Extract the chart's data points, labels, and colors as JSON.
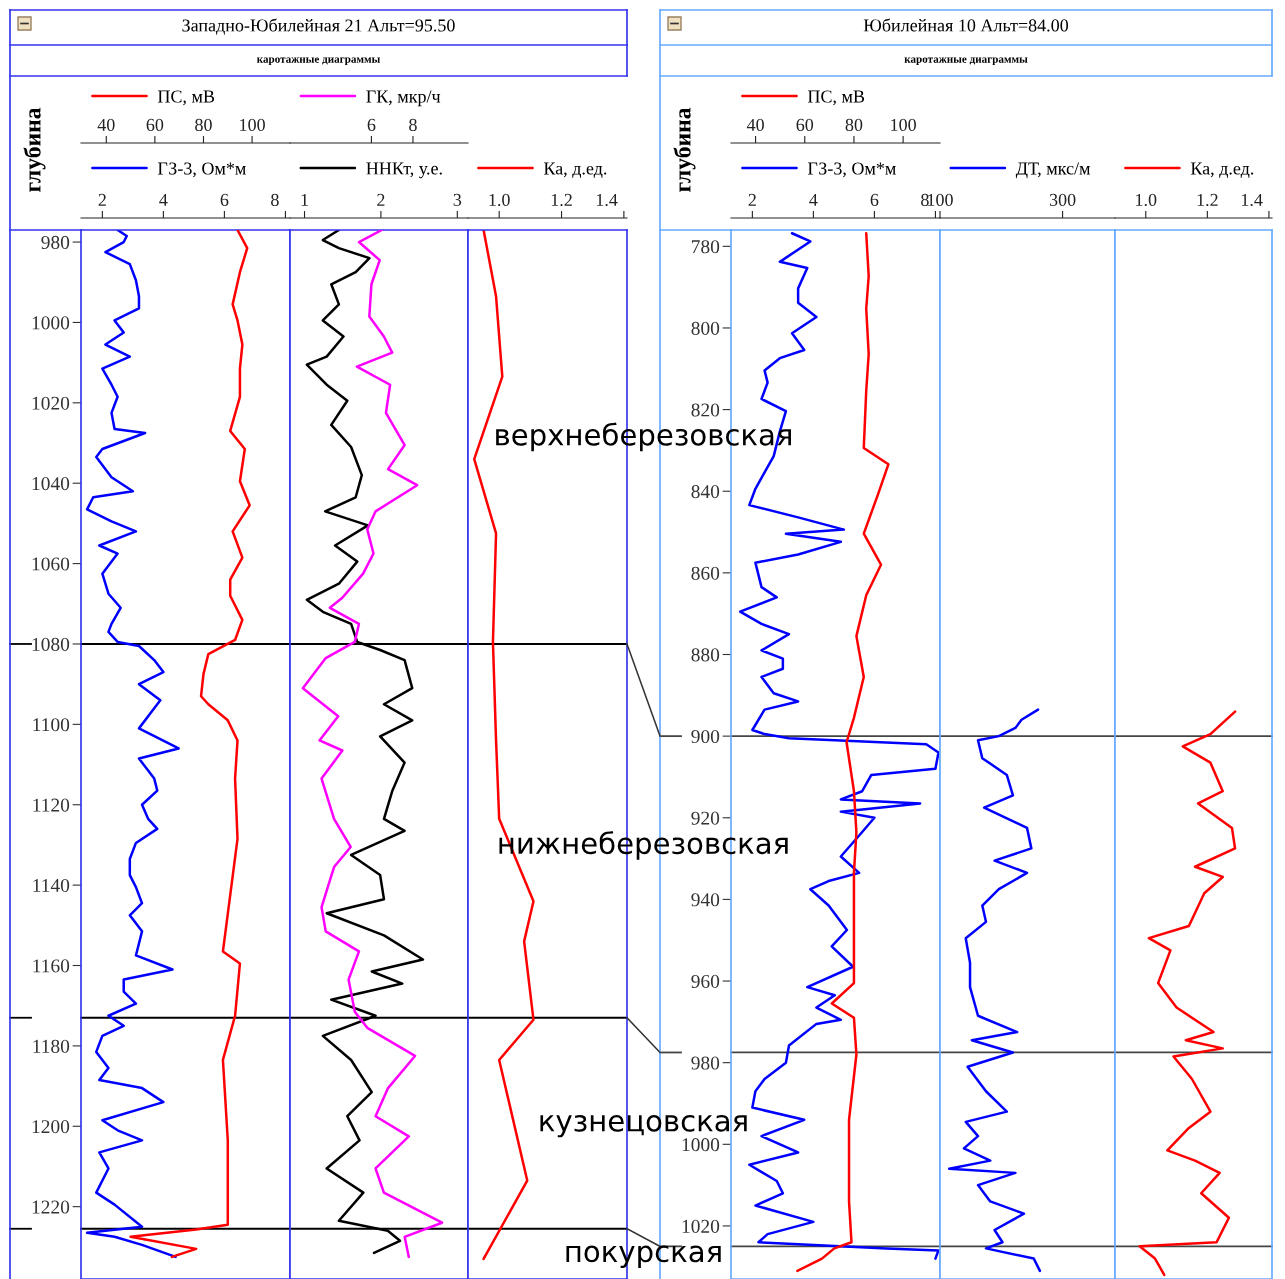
{
  "chart_data": [
    {
      "type": "line",
      "orientation": "horizontal",
      "title": "Западно-Юбилейная 21 Альт=95.50",
      "subtitle": "каротажные диаграммы",
      "ylabel": "глубина",
      "legend": "top",
      "ylim": [
        1238,
        977
      ],
      "yticks": [
        980,
        1000,
        1020,
        1040,
        1060,
        1080,
        1100,
        1120,
        1140,
        1160,
        1180,
        1200,
        1220
      ],
      "xlim": [
        1.3,
        8.15
      ],
      "xticks": [
        2,
        4,
        6,
        8
      ],
      "x2lim": [
        29.6,
        115.6
      ],
      "x2ticks": [
        40,
        60,
        80,
        100
      ],
      "ref_lines": [
        {
          "axis": "y",
          "value": 1080,
          "color": "#000000"
        },
        {
          "axis": "y",
          "value": 1173,
          "color": "#000000"
        },
        {
          "axis": "y",
          "value": 1225.5,
          "color": "#000000"
        }
      ],
      "series": [
        {
          "name": "ГЗ-3, Ом*м",
          "color": "#0000ff",
          "x": [
            977,
            978.5,
            980,
            982.5,
            985.5,
            989.5,
            993.5,
            996.5,
            999.5,
            1002.5,
            1005.5,
            1008.5,
            1011.5,
            1015.5,
            1018.5,
            1022.5,
            1026.5,
            1027.5,
            1031.5,
            1033.5,
            1038.5,
            1042,
            1043.5,
            1046.5,
            1049.5,
            1052,
            1055.5,
            1057.5,
            1062.5,
            1067.5,
            1071,
            1075,
            1077,
            1079.5,
            1080.5,
            1084,
            1087,
            1090,
            1094,
            1097,
            1101,
            1106,
            1108.5,
            1113.5,
            1116.5,
            1120,
            1123.5,
            1126,
            1129.5,
            1133.5,
            1137.5,
            1140.5,
            1144.5,
            1147.5,
            1151.5,
            1157.5,
            1161,
            1163.5,
            1166.5,
            1169.5,
            1172.5,
            1175,
            1177.5,
            1181.5,
            1185.5,
            1188.5,
            1190.5,
            1194,
            1198.5,
            1201,
            1203.5,
            1206.5,
            1210.5,
            1216.5,
            1219.5,
            1225,
            1226.5,
            1227.5,
            1229.5,
            1232.5
          ],
          "values": [
            2.5,
            2.8,
            2.7,
            2.1,
            2.9,
            3.1,
            3.2,
            3.2,
            2.4,
            2.7,
            2.1,
            2.9,
            2.0,
            2.3,
            2.5,
            2.3,
            2.4,
            3.4,
            2.0,
            1.8,
            2.3,
            3.0,
            1.7,
            1.5,
            2.3,
            3.1,
            1.9,
            2.5,
            2.0,
            2.2,
            2.6,
            2.3,
            2.2,
            2.5,
            3.2,
            3.7,
            4.0,
            3.2,
            3.9,
            3.6,
            3.2,
            4.5,
            3.2,
            3.7,
            3.8,
            3.3,
            3.5,
            3.8,
            3.1,
            2.9,
            2.9,
            3.1,
            3.3,
            2.9,
            3.3,
            3.1,
            4.3,
            2.7,
            2.7,
            3.1,
            2.2,
            2.7,
            2.0,
            1.8,
            2.2,
            1.9,
            3.3,
            4.0,
            2.0,
            2.5,
            3.3,
            1.9,
            2.2,
            1.8,
            2.4,
            3.3,
            1.5,
            2.4,
            3.3,
            4.4
          ]
        },
        {
          "name": "ПС, мВ",
          "color": "#ff0000",
          "axis": "x2",
          "x": [
            977,
            981.5,
            987.5,
            995.5,
            999.5,
            1005.5,
            1011.5,
            1018.5,
            1027,
            1031.5,
            1039.5,
            1045.5,
            1052,
            1058.5,
            1064,
            1068,
            1074,
            1079,
            1082.5,
            1087.5,
            1093,
            1095,
            1099,
            1104,
            1113.5,
            1128.5,
            1142.5,
            1156.5,
            1159.5,
            1172.5,
            1183.5,
            1203.5,
            1224.5,
            1225.7,
            1227.5,
            1230.5,
            1232.5
          ],
          "values": [
            94,
            98,
            95,
            92,
            94,
            96,
            95,
            95,
            91,
            97,
            95,
            99,
            92,
            96,
            91,
            91,
            96,
            93,
            82,
            80,
            79,
            82,
            90,
            94,
            93,
            94,
            91,
            88,
            95,
            93,
            88,
            90,
            90,
            77,
            50,
            77,
            67
          ]
        }
      ]
    },
    {
      "type": "line",
      "orientation": "horizontal",
      "legend": "top",
      "tick_labels": "x",
      "ylim": [
        1238,
        977
      ],
      "xlim": [
        0.81,
        3.14
      ],
      "xticks": [
        1,
        2,
        3
      ],
      "x2lim": [
        2.08,
        10.65
      ],
      "x2ticks": [
        6,
        8
      ],
      "ref_lines": [
        {
          "axis": "y",
          "value": 1080,
          "color": "#000000"
        },
        {
          "axis": "y",
          "value": 1173,
          "color": "#000000"
        },
        {
          "axis": "y",
          "value": 1225.5,
          "color": "#000000"
        }
      ],
      "series": [
        {
          "name": "ННКт, у.е.",
          "color": "#000000",
          "x": [
            977,
            979.5,
            981.5,
            984,
            987.5,
            990.5,
            995.5,
            999.5,
            1003.5,
            1008.5,
            1010.5,
            1015.5,
            1019.5,
            1025.5,
            1031,
            1038,
            1043.5,
            1047,
            1050.5,
            1055.5,
            1059.5,
            1065,
            1069,
            1072,
            1075,
            1079.5,
            1081.5,
            1084,
            1091,
            1095,
            1099,
            1103,
            1109.5,
            1116.5,
            1123.5,
            1126.5,
            1132.5,
            1137.5,
            1143.5,
            1147,
            1152.5,
            1158.5,
            1161.5,
            1164.5,
            1168.5,
            1172.5,
            1177.5,
            1183.5,
            1191.5,
            1197.5,
            1203.5,
            1210.5,
            1216.5,
            1223.5,
            1226,
            1228.5,
            1231.5
          ],
          "values": [
            1.45,
            1.24,
            1.45,
            1.85,
            1.67,
            1.35,
            1.45,
            1.24,
            1.51,
            1.29,
            1.03,
            1.29,
            1.56,
            1.35,
            1.61,
            1.75,
            1.67,
            1.27,
            1.83,
            1.4,
            1.69,
            1.45,
            1.03,
            1.24,
            1.61,
            1.69,
            1.99,
            2.31,
            2.41,
            2.04,
            2.41,
            1.99,
            2.31,
            2.15,
            2.04,
            2.31,
            1.61,
            1.99,
            2.04,
            1.29,
            2.04,
            2.55,
            1.88,
            2.28,
            1.35,
            1.93,
            1.24,
            1.61,
            1.88,
            1.56,
            1.72,
            1.29,
            1.77,
            1.45,
            2.09,
            2.25,
            1.91
          ]
        },
        {
          "name": "ГК, мкр/ч",
          "color": "#ff00ff",
          "axis": "x2",
          "x": [
            977,
            980,
            984.5,
            990.5,
            998.5,
            1003.5,
            1007.5,
            1011,
            1015.5,
            1022.5,
            1030.5,
            1036.5,
            1040.5,
            1047,
            1051.5,
            1057.5,
            1062.5,
            1068.5,
            1071,
            1075,
            1079.5,
            1083.5,
            1091,
            1098,
            1104,
            1106.5,
            1113.5,
            1123.5,
            1130.5,
            1135.5,
            1145.5,
            1151.5,
            1156.5,
            1163.5,
            1171.5,
            1175.5,
            1182.5,
            1190.5,
            1197.5,
            1202.5,
            1210.5,
            1216.5,
            1224,
            1227.5,
            1232.5
          ],
          "values": [
            6.5,
            5.4,
            6.4,
            6.0,
            5.9,
            6.6,
            7.0,
            5.3,
            6.9,
            6.7,
            7.6,
            6.8,
            8.2,
            6.2,
            5.8,
            6.1,
            5.6,
            4.6,
            4.0,
            5.4,
            5.2,
            3.8,
            2.7,
            4.4,
            3.5,
            4.6,
            3.6,
            4.2,
            5.0,
            4.2,
            3.6,
            3.8,
            5.4,
            4.9,
            5.2,
            5.8,
            8.1,
            6.8,
            6.2,
            7.8,
            6.2,
            6.6,
            9.4,
            7.6,
            7.8
          ]
        }
      ]
    },
    {
      "type": "line",
      "orientation": "horizontal",
      "legend": "top",
      "tick_labels": "x",
      "ylim": [
        1238,
        977
      ],
      "xlim": [
        0.9,
        1.41
      ],
      "xticks": [
        {
          "value": 1.0,
          "label": "1.0"
        },
        {
          "value": 1.2,
          "label": "1.2"
        },
        {
          "value": 1.4,
          "label": "1.4"
        }
      ],
      "ref_lines": [
        {
          "axis": "y",
          "value": 1080,
          "color": "#000000"
        },
        {
          "axis": "y",
          "value": 1173,
          "color": "#000000"
        },
        {
          "axis": "y",
          "value": 1225.5,
          "color": "#000000"
        }
      ],
      "annotations": [
        "верхнеберезовская",
        "нижнеберезовская",
        "кузнецовская",
        "покурская"
      ],
      "series": [
        {
          "name": "Ка, д.ед.",
          "color": "#ff0000",
          "x": [
            977,
            993.5,
            1013.5,
            1034,
            1052.5,
            1079.5,
            1104,
            1123.5,
            1144,
            1154,
            1173.5,
            1183.5,
            1213.5,
            1233
          ],
          "values": [
            0.95,
            0.99,
            1.01,
            0.92,
            0.99,
            0.98,
            0.99,
            1.0,
            1.11,
            1.08,
            1.11,
            1.0,
            1.09,
            0.95
          ]
        }
      ]
    },
    {
      "type": "line",
      "orientation": "horizontal",
      "title": "Юбилейная 10 Альт=84.00",
      "subtitle": "каротажные диаграммы",
      "ylabel": "глубина",
      "legend": "top",
      "ylim": [
        1033,
        776
      ],
      "yticks": [
        780,
        800,
        820,
        840,
        860,
        880,
        900,
        920,
        940,
        960,
        980,
        1000,
        1020
      ],
      "xlim": [
        1.3,
        8.15
      ],
      "xticks": [
        2,
        4,
        6,
        8
      ],
      "x2lim": [
        30,
        115
      ],
      "x2ticks": [
        40,
        60,
        80,
        100
      ],
      "ref_lines": [
        {
          "axis": "y",
          "value": 900,
          "color": "#444444"
        },
        {
          "axis": "y",
          "value": 977.5,
          "color": "#444444"
        },
        {
          "axis": "y",
          "value": 1025,
          "color": "#444444"
        }
      ],
      "series": [
        {
          "name": "ГЗ-3, Ом*м",
          "color": "#0000ff",
          "x": [
            776.8,
            778.8,
            783.8,
            785.3,
            790.3,
            793.8,
            797.3,
            801.3,
            805.4,
            807.4,
            810.4,
            813.4,
            817.4,
            820.4,
            825.4,
            831.4,
            835.4,
            839.4,
            843.4,
            846.4,
            849.4,
            850.4,
            852.4,
            855.5,
            857.5,
            863.5,
            866,
            869.5,
            872.5,
            875,
            879,
            881,
            883.5,
            885.5,
            889.5,
            891.5,
            893.5,
            898.5,
            899.5,
            900.5,
            902,
            904,
            908,
            909.5,
            913.5,
            915.5,
            916.5,
            918.5,
            920,
            923.5,
            929.5,
            933.5,
            935.5,
            937.5,
            941.5,
            947.5,
            951.5,
            956.5,
            961.5,
            963.5,
            966.5,
            969.5,
            970.5,
            975.8,
            980,
            984,
            987,
            991,
            994,
            998,
            1002,
            1005,
            1009,
            1012,
            1015,
            1019,
            1022,
            1024,
            1025.5,
            1026,
            1028
          ],
          "values": [
            3.3,
            3.9,
            2.9,
            3.8,
            3.5,
            3.5,
            4.1,
            3.3,
            3.7,
            2.9,
            2.4,
            2.5,
            2.3,
            3.1,
            2.9,
            2.7,
            2.4,
            2.1,
            1.9,
            3.5,
            5.0,
            3.1,
            4.9,
            3.5,
            2.1,
            2.3,
            2.8,
            1.6,
            2.3,
            3.2,
            2.3,
            3.0,
            3.0,
            2.3,
            2.7,
            3.5,
            2.4,
            2.0,
            2.4,
            3.2,
            7.7,
            8.1,
            8.0,
            5.9,
            5.6,
            4.9,
            7.5,
            4.9,
            6.0,
            5.6,
            4.9,
            5.5,
            4.5,
            3.9,
            4.5,
            5.1,
            4.6,
            5.3,
            3.8,
            4.7,
            4.1,
            4.9,
            4.1,
            3.2,
            3.1,
            2.4,
            2.1,
            2.0,
            3.7,
            2.3,
            3.5,
            1.9,
            2.8,
            3.0,
            2.1,
            4.0,
            2.5,
            2.2,
            6.4,
            8.1,
            8.0
          ]
        },
        {
          "name": "ПС, мВ",
          "color": "#ff0000",
          "axis": "x2",
          "x": [
            776.8,
            787.3,
            795.3,
            806.4,
            815.4,
            829.4,
            833.4,
            840.4,
            850.4,
            858,
            865.5,
            875.5,
            885.5,
            895.5,
            901.5,
            913.5,
            923.5,
            933.5,
            948.5,
            960.5,
            965.5,
            969,
            978,
            994,
            1014,
            1024,
            1025.5,
            1028,
            1031
          ],
          "values": [
            85,
            86,
            85,
            86,
            85,
            84,
            94,
            90,
            84,
            91,
            85,
            81,
            84,
            80,
            77,
            80,
            81,
            80,
            80,
            80,
            71,
            80,
            81,
            78,
            78,
            79,
            72,
            67,
            57
          ]
        }
      ]
    },
    {
      "type": "line",
      "orientation": "horizontal",
      "legend": "top",
      "tick_labels": "x",
      "ylim": [
        1033,
        776
      ],
      "xlim": [
        100,
        385.5
      ],
      "xticks": [
        100,
        300
      ],
      "ref_lines": [
        {
          "axis": "y",
          "value": 900,
          "color": "#444444"
        },
        {
          "axis": "y",
          "value": 977.5,
          "color": "#444444"
        },
        {
          "axis": "y",
          "value": 1025,
          "color": "#444444"
        }
      ],
      "series": [
        {
          "name": "ДТ, мкс/м",
          "color": "#0000ff",
          "x": [
            893.5,
            896,
            898,
            900,
            901,
            905.4,
            909.5,
            914.5,
            917.5,
            922.5,
            927.5,
            930.5,
            933.5,
            937.5,
            941.5,
            945.5,
            949.5,
            955.5,
            961.5,
            968.5,
            972.5,
            974.5,
            977.5,
            981,
            987,
            992,
            994.5,
            998,
            1001,
            1004,
            1006,
            1007,
            1010,
            1014,
            1017,
            1021,
            1024,
            1025.5,
            1028,
            1031
          ],
          "values": [
            260,
            233,
            223,
            196,
            162,
            169,
            209,
            219,
            172,
            242,
            249,
            189,
            242,
            196,
            169,
            175,
            142,
            149,
            149,
            162,
            226,
            152,
            219,
            145,
            175,
            209,
            142,
            162,
            139,
            182,
            115,
            223,
            162,
            182,
            237,
            189,
            202,
            175,
            253,
            263
          ]
        }
      ]
    },
    {
      "type": "line",
      "orientation": "horizontal",
      "legend": "top",
      "tick_labels": "x",
      "ylim": [
        1033,
        776
      ],
      "xlim": [
        0.9,
        1.41
      ],
      "xticks": [
        {
          "value": 1.0,
          "label": "1.0"
        },
        {
          "value": 1.2,
          "label": "1.2"
        },
        {
          "value": 1.4,
          "label": "1.4"
        }
      ],
      "ref_lines": [
        {
          "axis": "y",
          "value": 900,
          "color": "#444444"
        },
        {
          "axis": "y",
          "value": 977.5,
          "color": "#444444"
        },
        {
          "axis": "y",
          "value": 1025,
          "color": "#444444"
        }
      ],
      "series": [
        {
          "name": "Ка, д.ед.",
          "color": "#ff0000",
          "x": [
            894,
            899.5,
            902.5,
            906.5,
            913.5,
            916.5,
            922.5,
            927.5,
            932,
            934.5,
            938.5,
            946.5,
            949.5,
            952.5,
            960.5,
            966.5,
            972.5,
            974.5,
            976.5,
            978.5,
            984,
            992,
            996,
            1001.5,
            1004,
            1007,
            1012,
            1018,
            1024,
            1025,
            1028,
            1032
          ],
          "values": [
            1.29,
            1.21,
            1.12,
            1.21,
            1.25,
            1.17,
            1.28,
            1.29,
            1.16,
            1.25,
            1.19,
            1.14,
            1.01,
            1.08,
            1.04,
            1.1,
            1.22,
            1.13,
            1.25,
            1.09,
            1.15,
            1.21,
            1.14,
            1.07,
            1.16,
            1.24,
            1.18,
            1.27,
            1.23,
            0.98,
            1.03,
            1.06
          ]
        }
      ]
    }
  ]
}
